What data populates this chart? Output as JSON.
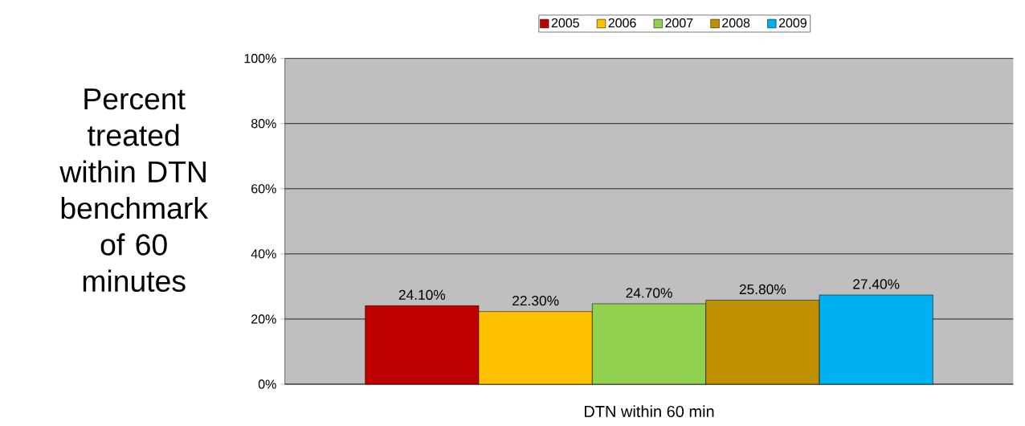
{
  "chart_data": {
    "type": "bar",
    "ylabel": "Percent treated within DTN benchmark of 60 minutes",
    "categories": [
      "DTN within 60 min"
    ],
    "series": [
      {
        "name": "2005",
        "color": "#c00000",
        "values": [
          24.1
        ],
        "value_labels": [
          "24.10%"
        ]
      },
      {
        "name": "2006",
        "color": "#ffc000",
        "values": [
          22.3
        ],
        "value_labels": [
          "22.30%"
        ]
      },
      {
        "name": "2007",
        "color": "#92d050",
        "values": [
          24.7
        ],
        "value_labels": [
          "24.70%"
        ]
      },
      {
        "name": "2008",
        "color": "#bf9000",
        "values": [
          25.8
        ],
        "value_labels": [
          "25.80%"
        ]
      },
      {
        "name": "2009",
        "color": "#00b0f0",
        "values": [
          27.4
        ],
        "value_labels": [
          "27.40%"
        ]
      }
    ],
    "ylim": [
      0,
      100
    ],
    "yticks": [
      {
        "value": 0,
        "label": "0%"
      },
      {
        "value": 20,
        "label": "20%"
      },
      {
        "value": 40,
        "label": "40%"
      },
      {
        "value": 60,
        "label": "60%"
      },
      {
        "value": 80,
        "label": "80%"
      },
      {
        "value": 100,
        "label": "100%"
      }
    ],
    "grid": "y",
    "legend": "top"
  }
}
